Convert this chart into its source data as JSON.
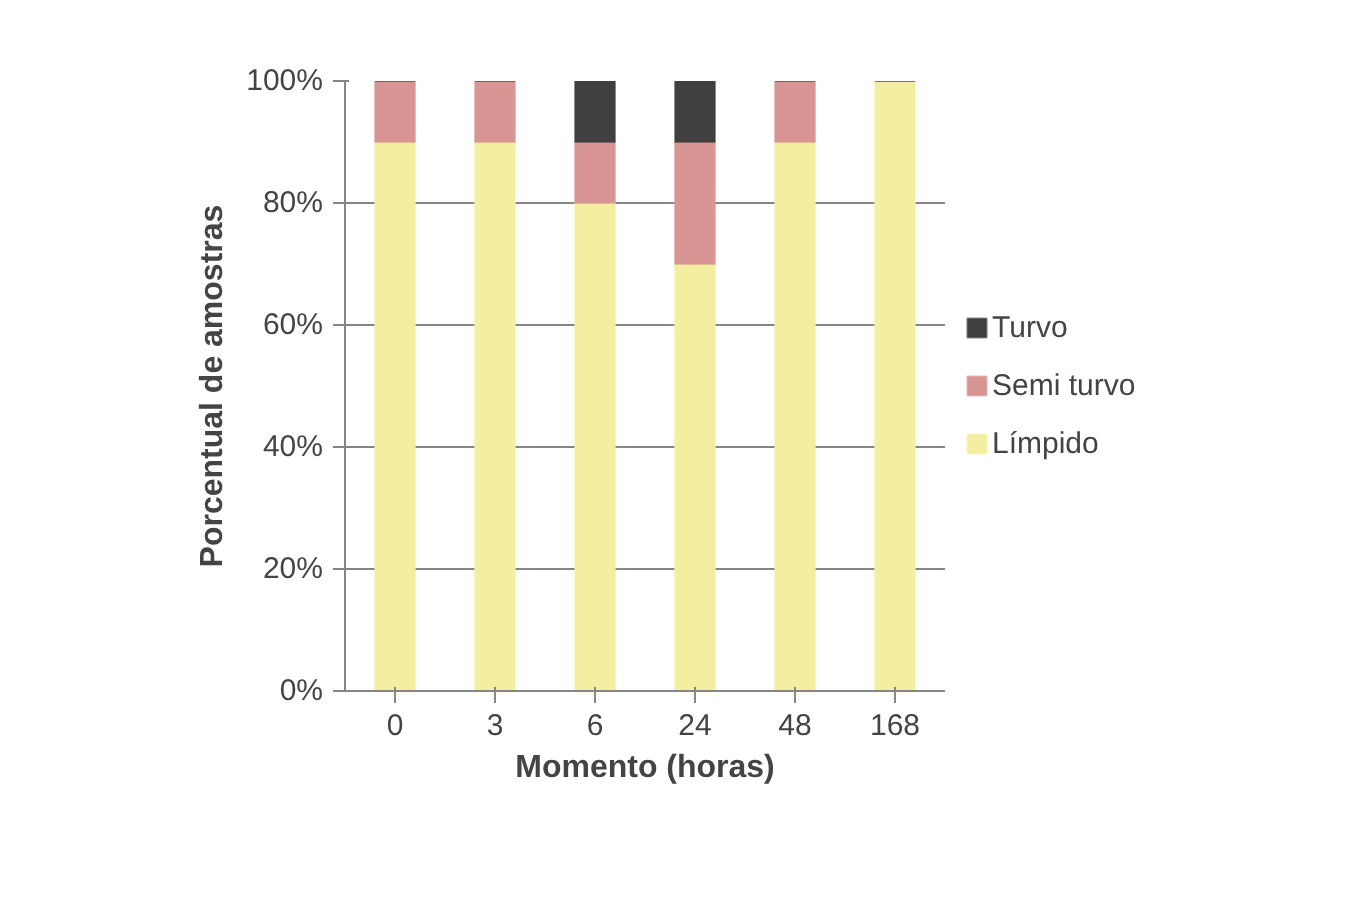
{
  "chart_data": {
    "type": "bar",
    "stacked": true,
    "xlabel": "Momento (horas)",
    "ylabel": "Porcentual de amostras",
    "categories": [
      "0",
      "3",
      "6",
      "24",
      "48",
      "168"
    ],
    "series": [
      {
        "name": "Límpido",
        "color": "#f3eea0",
        "values": [
          90,
          90,
          80,
          70,
          90,
          100
        ]
      },
      {
        "name": "Semi turvo",
        "color": "#d99594",
        "values": [
          10,
          10,
          10,
          20,
          10,
          0
        ]
      },
      {
        "name": "Turvo",
        "color": "#404040",
        "values": [
          0,
          0,
          10,
          10,
          0,
          0
        ]
      }
    ],
    "ylim": [
      0,
      100
    ],
    "yticks": [
      {
        "value": 0,
        "label": "0%"
      },
      {
        "value": 20,
        "label": "20%"
      },
      {
        "value": 40,
        "label": "40%"
      },
      {
        "value": 60,
        "label": "60%"
      },
      {
        "value": 80,
        "label": "80%"
      },
      {
        "value": 100,
        "label": "100%"
      }
    ],
    "grid": "y",
    "legend": "right"
  }
}
